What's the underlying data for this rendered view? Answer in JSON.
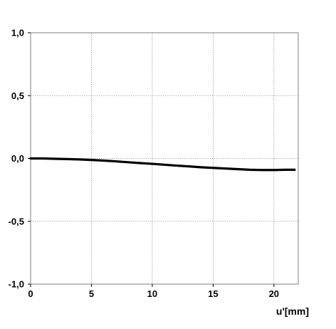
{
  "chart_data": {
    "type": "line",
    "title": "",
    "xlabel": "u'[mm]",
    "ylabel": "",
    "xlim": [
      0,
      22
    ],
    "ylim": [
      -1.0,
      1.0
    ],
    "x_ticks": [
      0,
      5,
      10,
      15,
      20
    ],
    "x_tick_labels": [
      "0",
      "5",
      "10",
      "15",
      "20"
    ],
    "y_ticks": [
      1.0,
      0.5,
      0.0,
      -0.5,
      -1.0
    ],
    "y_tick_labels": [
      "1,0",
      "0,5",
      "0,0",
      "-0,5",
      "-1,0"
    ],
    "grid": true,
    "legend": "none",
    "series": [
      {
        "color": "#000000",
        "x": [
          0,
          1,
          2,
          3,
          4,
          5,
          6,
          7,
          8,
          9,
          10,
          11,
          12,
          13,
          14,
          15,
          16,
          17,
          18,
          19,
          20,
          21,
          21.7
        ],
        "y": [
          0.0,
          0.0,
          -0.003,
          -0.005,
          -0.008,
          -0.012,
          -0.017,
          -0.023,
          -0.03,
          -0.037,
          -0.043,
          -0.05,
          -0.057,
          -0.063,
          -0.07,
          -0.075,
          -0.08,
          -0.085,
          -0.09,
          -0.092,
          -0.092,
          -0.09,
          -0.09
        ]
      }
    ]
  }
}
